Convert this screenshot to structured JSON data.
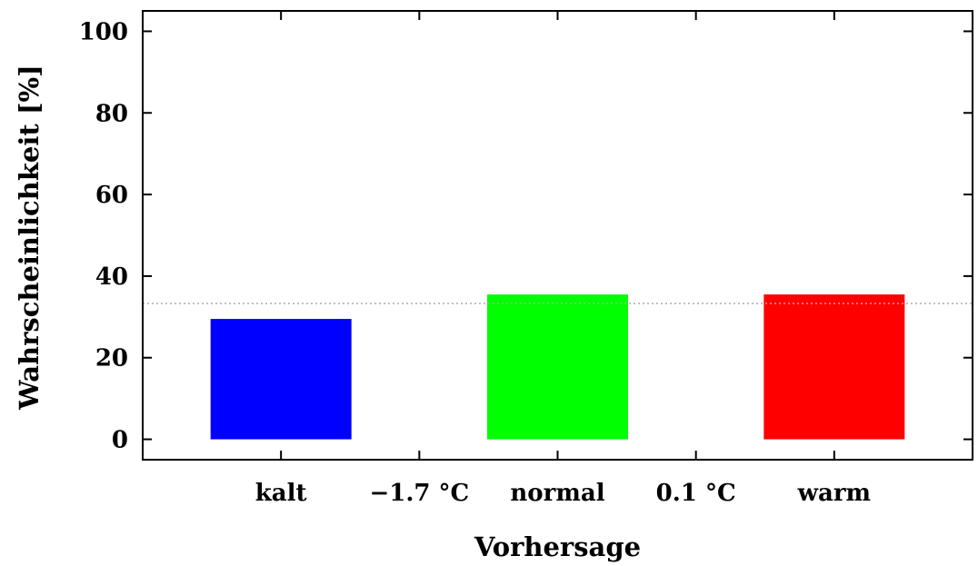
{
  "chart_data": {
    "type": "bar",
    "title": "",
    "xlabel": "Vorhersage",
    "ylabel": "Wahrscheinlichkeit [%]",
    "ylim": [
      -5,
      105
    ],
    "yticks": [
      0,
      20,
      40,
      60,
      80,
      100
    ],
    "categories": [
      "kalt",
      "normal",
      "warm"
    ],
    "values": [
      29.5,
      35.5,
      35.5
    ],
    "colors": [
      "#0000ff",
      "#00ff00",
      "#ff0000"
    ],
    "threshold_labels": [
      "−1.7 °C",
      "0.1 °C"
    ],
    "reference_line": 33.3,
    "grid": false
  }
}
